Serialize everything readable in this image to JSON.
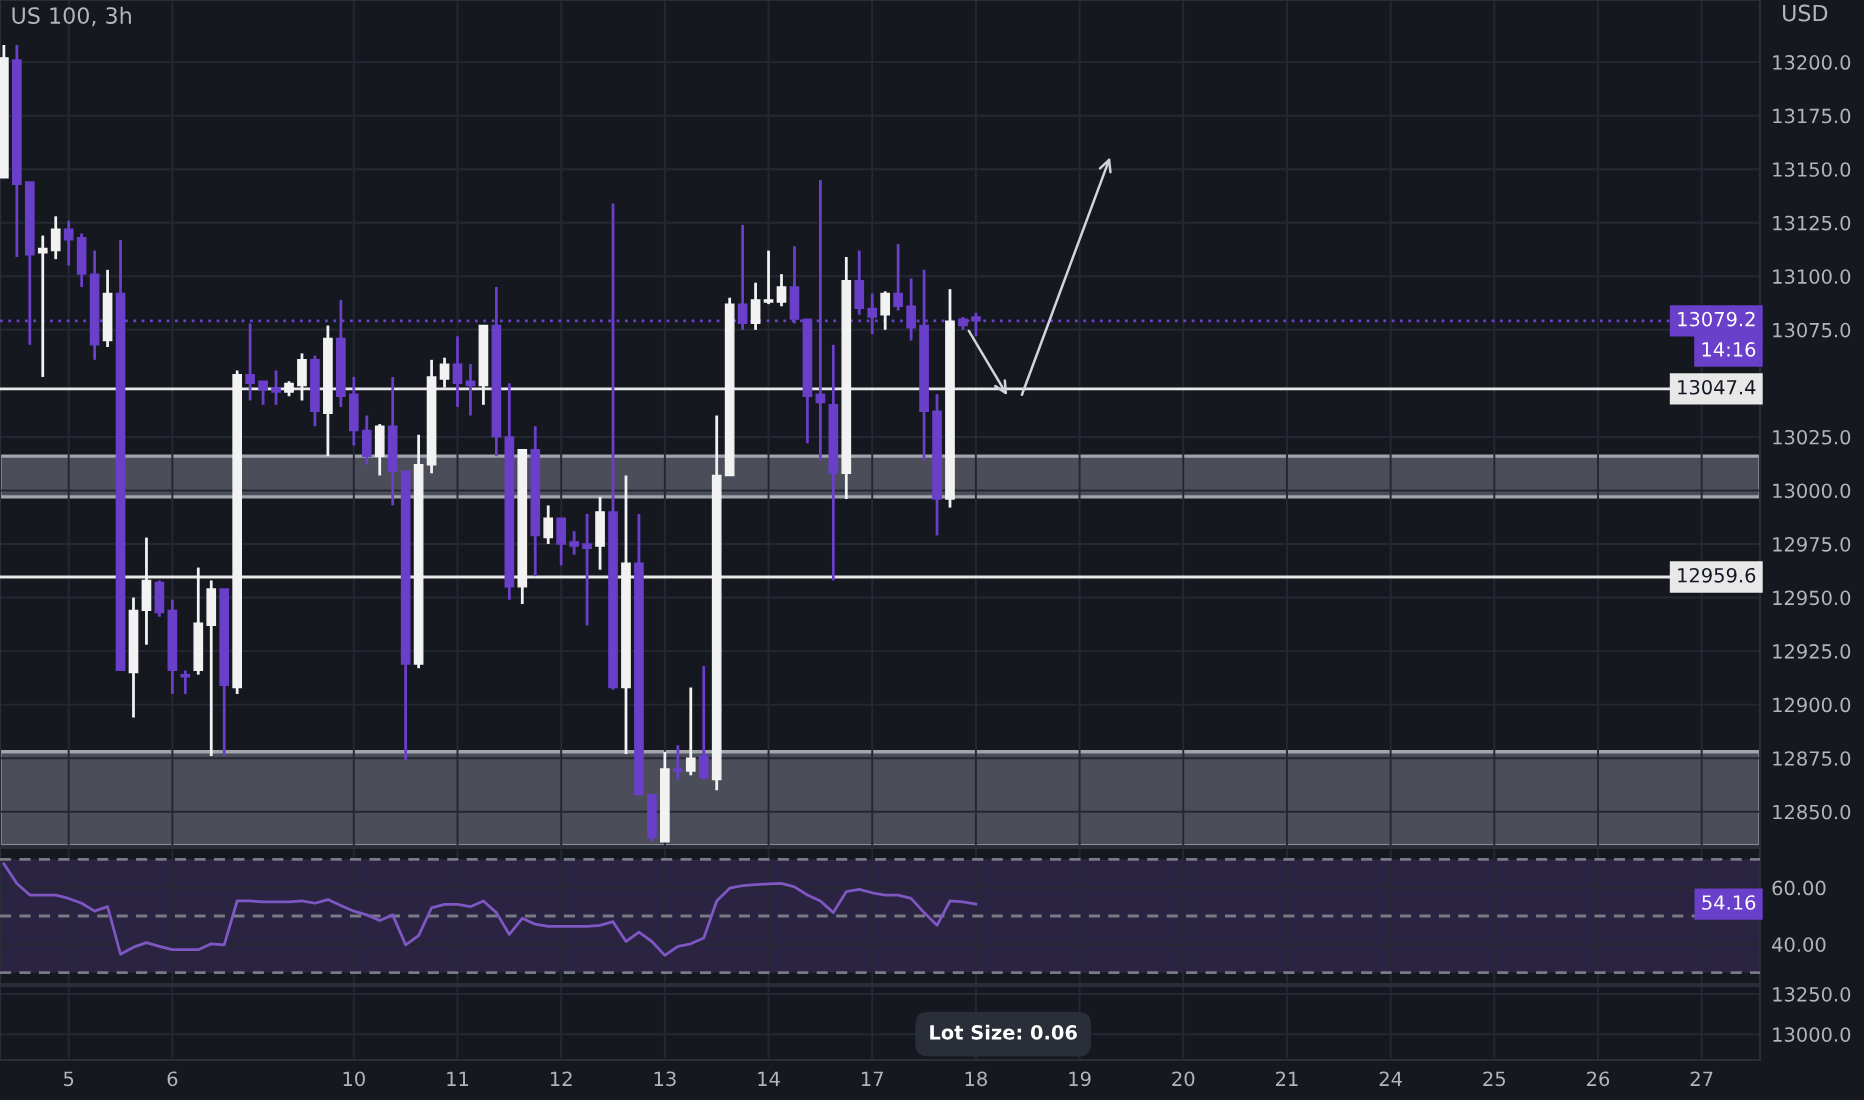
{
  "chart_data": [
    {
      "type": "candlestick",
      "title": "US 100, 3h",
      "ylabel": "USD",
      "categories": [
        null,
        null,
        null,
        null,
        null,
        "5",
        null,
        null,
        null,
        null,
        null,
        null,
        null,
        "6",
        null,
        null,
        null,
        null,
        null,
        null,
        null,
        null,
        null,
        null,
        null,
        null,
        null,
        "10",
        null,
        null,
        null,
        null,
        null,
        null,
        null,
        "11",
        null,
        null,
        null,
        null,
        null,
        null,
        null,
        "12",
        null,
        null,
        null,
        null,
        null,
        null,
        null,
        "13",
        null,
        null,
        null,
        null,
        null,
        null,
        null,
        "14",
        null,
        null,
        null,
        null,
        null,
        null,
        null,
        "17",
        null,
        null,
        null,
        null,
        null,
        null,
        null,
        "18",
        null,
        null,
        null,
        null,
        null,
        null,
        null,
        "19",
        null,
        null,
        null,
        null,
        null,
        null,
        null,
        "20",
        null,
        null,
        null,
        null,
        null,
        null,
        null,
        "21",
        null,
        null,
        null,
        null,
        null,
        null,
        null,
        "24",
        null,
        null,
        null,
        null,
        null,
        null,
        null,
        "25",
        null,
        null,
        null,
        null,
        null,
        null,
        null,
        "26",
        null,
        null,
        null,
        null,
        null,
        null,
        null,
        "27",
        null,
        null,
        null,
        null
      ],
      "ohlc": [
        [
          13146,
          13208,
          13146,
          13202
        ],
        [
          13201,
          13208,
          13109,
          13143
        ],
        [
          13144,
          13144,
          13068,
          13110
        ],
        [
          13111,
          13119,
          13053,
          13113
        ],
        [
          13112,
          13128,
          13108,
          13122
        ],
        [
          13122,
          13126,
          13105,
          13117
        ],
        [
          13118,
          13120,
          13095,
          13101
        ],
        [
          13101,
          13112,
          13061,
          13068
        ],
        [
          13070,
          13103,
          13067,
          13092
        ],
        [
          13092,
          13117,
          12916,
          12916
        ],
        [
          12915,
          12950,
          12894,
          12944
        ],
        [
          12944,
          12978,
          12928,
          12958
        ],
        [
          12957,
          12958,
          12941,
          12943
        ],
        [
          12944,
          12949,
          12905,
          12916
        ],
        [
          12914,
          12916,
          12905,
          12913
        ],
        [
          12916,
          12964,
          12914,
          12938
        ],
        [
          12937,
          12958,
          12876,
          12954
        ],
        [
          12954,
          12954,
          12876,
          12909
        ],
        [
          12908,
          13056,
          12905,
          13054
        ],
        [
          13054,
          13078,
          13042,
          13050
        ],
        [
          13051,
          13051,
          13040,
          13047
        ],
        [
          13048,
          13056,
          13040,
          13046
        ],
        [
          13046,
          13051,
          13044,
          13050
        ],
        [
          13049,
          13064,
          13042,
          13061
        ],
        [
          13061,
          13063,
          13030,
          13037
        ],
        [
          13036,
          13077,
          13016,
          13071
        ],
        [
          13071,
          13089,
          13039,
          13044
        ],
        [
          13045,
          13053,
          13021,
          13028
        ],
        [
          13028,
          13035,
          13012,
          13016
        ],
        [
          13016,
          13031,
          13007,
          13030
        ],
        [
          13030,
          13053,
          12993,
          13009
        ],
        [
          13009,
          13009,
          12874,
          12919
        ],
        [
          12919,
          13026,
          12917,
          13012
        ],
        [
          13012,
          13061,
          13008,
          13053
        ],
        [
          13052,
          13062,
          13048,
          13059
        ],
        [
          13059,
          13072,
          13039,
          13050
        ],
        [
          13051,
          13059,
          13035,
          13049
        ],
        [
          13049,
          13077,
          13040,
          13077
        ],
        [
          13077,
          13095,
          13016,
          13025
        ],
        [
          13025,
          13050,
          12949,
          12955
        ],
        [
          12955,
          13019,
          12947,
          13019
        ],
        [
          13019,
          13030,
          12960,
          12979
        ],
        [
          12978,
          12993,
          12975,
          12987
        ],
        [
          12987,
          12987,
          12965,
          12975
        ],
        [
          12976,
          12981,
          12970,
          12974
        ],
        [
          12975,
          12989,
          12937,
          12973
        ],
        [
          12974,
          12997,
          12963,
          12990
        ],
        [
          12990,
          13134,
          12907,
          12908
        ],
        [
          12908,
          13007,
          12877,
          12966
        ],
        [
          12966,
          12989,
          12858,
          12858
        ],
        [
          12858,
          12858,
          12836,
          12838
        ],
        [
          12836,
          12878,
          12836,
          12870
        ],
        [
          12870,
          12881,
          12865,
          12869
        ],
        [
          12869,
          12908,
          12867,
          12875
        ],
        [
          12876,
          12918,
          12865,
          12866
        ],
        [
          12865,
          13035,
          12860,
          13007
        ],
        [
          13007,
          13090,
          13007,
          13087
        ],
        [
          13087,
          13124,
          13075,
          13078
        ],
        [
          13078,
          13097,
          13075,
          13089
        ],
        [
          13088,
          13112,
          13087,
          13089
        ],
        [
          13088,
          13101,
          13086,
          13095
        ],
        [
          13095,
          13114,
          13078,
          13080
        ],
        [
          13080,
          13080,
          13022,
          13044
        ],
        [
          13045,
          13145,
          13014,
          13041
        ],
        [
          13040,
          13068,
          12958,
          13008
        ],
        [
          13008,
          13109,
          12996,
          13098
        ],
        [
          13098,
          13112,
          13082,
          13085
        ],
        [
          13085,
          13092,
          13073,
          13081
        ],
        [
          13082,
          13093,
          13075,
          13092
        ],
        [
          13092,
          13115,
          13084,
          13086
        ],
        [
          13086,
          13099,
          13070,
          13076
        ],
        [
          13077,
          13103,
          13014,
          13037
        ],
        [
          13037,
          13045,
          12979,
          12996
        ],
        [
          12996,
          13094,
          12992,
          13079
        ],
        [
          13080,
          13081,
          13075,
          13077
        ],
        [
          13081,
          13083,
          13072,
          13079.2
        ],
        null,
        null,
        null,
        null,
        null,
        null,
        null,
        null,
        null,
        null,
        null,
        null,
        null,
        null,
        null,
        null,
        null,
        null,
        null,
        null,
        null,
        null,
        null,
        null,
        null,
        null,
        null,
        null,
        null,
        null,
        null,
        null,
        null,
        null,
        null,
        null,
        null,
        null,
        null,
        null,
        null,
        null,
        null,
        null,
        null,
        null,
        null,
        null,
        null,
        null,
        null,
        null,
        null,
        null,
        null,
        null,
        null,
        null,
        null,
        null
      ],
      "colors": [
        "#f2f2f2",
        "#6a3fc9",
        "#6a3fc9",
        "#f2f2f2",
        "#f2f2f2",
        "#6a3fc9",
        "#6a3fc9",
        "#6a3fc9",
        "#f2f2f2",
        "#6a3fc9",
        "#f2f2f2",
        "#f2f2f2",
        "#6a3fc9",
        "#6a3fc9",
        "#6a3fc9",
        "#f2f2f2",
        "#f2f2f2",
        "#6a3fc9",
        "#f2f2f2",
        "#6a3fc9",
        "#6a3fc9",
        "#6a3fc9",
        "#f2f2f2",
        "#f2f2f2",
        "#6a3fc9",
        "#f2f2f2",
        "#6a3fc9",
        "#6a3fc9",
        "#6a3fc9",
        "#f2f2f2",
        "#6a3fc9",
        "#6a3fc9",
        "#f2f2f2",
        "#f2f2f2",
        "#f2f2f2",
        "#6a3fc9",
        "#6a3fc9",
        "#f2f2f2",
        "#6a3fc9",
        "#6a3fc9",
        "#f2f2f2",
        "#6a3fc9",
        "#f2f2f2",
        "#6a3fc9",
        "#6a3fc9",
        "#6a3fc9",
        "#f2f2f2",
        "#6a3fc9",
        "#f2f2f2",
        "#6a3fc9",
        "#6a3fc9",
        "#f2f2f2",
        "#6a3fc9",
        "#f2f2f2",
        "#6a3fc9",
        "#f2f2f2",
        "#f2f2f2",
        "#6a3fc9",
        "#f2f2f2",
        "#f2f2f2",
        "#f2f2f2",
        "#6a3fc9",
        "#6a3fc9",
        "#6a3fc9",
        "#6a3fc9",
        "#f2f2f2",
        "#6a3fc9",
        "#6a3fc9",
        "#f2f2f2",
        "#6a3fc9",
        "#6a3fc9",
        "#6a3fc9",
        "#6a3fc9",
        "#f2f2f2",
        "#6a3fc9",
        "#6a3fc9",
        null,
        null,
        null,
        null,
        null,
        null,
        null,
        null,
        null,
        null,
        null,
        null,
        null,
        null,
        null,
        null,
        null,
        null,
        null,
        null,
        null,
        null,
        null,
        null,
        null,
        null,
        null,
        null,
        null,
        null,
        null,
        null,
        null,
        null,
        null,
        null,
        null,
        null,
        null,
        null,
        null,
        null,
        null,
        null,
        null,
        null,
        null,
        null,
        null,
        null,
        null,
        null,
        null,
        null,
        null,
        null,
        null,
        null,
        null,
        null
      ],
      "ylim": [
        12834,
        13229
      ],
      "yticks": [
        {
          "value": 12850,
          "label": "12850.0"
        },
        {
          "value": 12875,
          "label": "12875.0"
        },
        {
          "value": 12900,
          "label": "12900.0"
        },
        {
          "value": 12925,
          "label": "12925.0"
        },
        {
          "value": 12950,
          "label": "12950.0"
        },
        {
          "value": 12975,
          "label": "12975.0"
        },
        {
          "value": 13000,
          "label": "13000.0"
        },
        {
          "value": 13025,
          "label": "13025.0"
        },
        {
          "value": 13075,
          "label": "13075.0"
        },
        {
          "value": 13100,
          "label": "13100.0"
        },
        {
          "value": 13125,
          "label": "13125.0"
        },
        {
          "value": 13150,
          "label": "13150.0"
        },
        {
          "value": 13175,
          "label": "13175.0"
        },
        {
          "value": 13200,
          "label": "13200.0"
        }
      ],
      "ref_lines": [
        {
          "axis": "y",
          "value": 13047.4,
          "label": "13047.4",
          "color": "#e8e8e8",
          "line_style": "solid"
        },
        {
          "axis": "y",
          "value": 12959.6,
          "label": "12959.6",
          "color": "#e8e8e8",
          "line_style": "solid"
        },
        {
          "axis": "y",
          "value": 13079.2,
          "label": "13079.2",
          "color": "#6a3fc9",
          "line_style": "dotted"
        }
      ],
      "bands": [
        {
          "axis": "y",
          "from": 12997,
          "to": 13016,
          "color": "#5d606b"
        },
        {
          "axis": "y",
          "from": 12834,
          "to": 12878,
          "color": "#5d606b"
        }
      ],
      "annotations": [
        "14:16"
      ],
      "grid": true,
      "tick_labels": "y"
    },
    {
      "type": "line",
      "categories": [
        null,
        null,
        null,
        null,
        null,
        "5",
        null,
        null,
        null,
        null,
        null,
        null,
        null,
        "6",
        null,
        null,
        null,
        null,
        null,
        null,
        null,
        null,
        null,
        null,
        null,
        null,
        null,
        "10",
        null,
        null,
        null,
        null,
        null,
        null,
        null,
        "11",
        null,
        null,
        null,
        null,
        null,
        null,
        null,
        "12",
        null,
        null,
        null,
        null,
        null,
        null,
        null,
        "13",
        null,
        null,
        null,
        null,
        null,
        null,
        null,
        "14",
        null,
        null,
        null,
        null,
        null,
        null,
        null,
        "17",
        null,
        null,
        null,
        null,
        null,
        null,
        null,
        "18",
        null,
        null,
        null,
        null,
        null,
        null,
        null,
        "19",
        null,
        null,
        null,
        null,
        null,
        null,
        null,
        "20",
        null,
        null,
        null,
        null,
        null,
        null,
        null,
        "21",
        null,
        null,
        null,
        null,
        null,
        null,
        null,
        "24",
        null,
        null,
        null,
        null,
        null,
        null,
        null,
        "25",
        null,
        null,
        null,
        null,
        null,
        null,
        null,
        "26",
        null,
        null,
        null,
        null,
        null,
        null,
        null,
        "27",
        null,
        null,
        null,
        null
      ],
      "series": [
        {
          "color": "#7e57c2",
          "values": [
            68.4,
            61.5,
            57.4,
            57.4,
            57.4,
            56.2,
            54.5,
            51.7,
            53.3,
            36.5,
            39.0,
            40.6,
            39.3,
            38.1,
            38.1,
            38.1,
            40.2,
            39.8,
            55.3,
            55.3,
            55.0,
            55.0,
            55.0,
            55.3,
            54.5,
            55.8,
            53.7,
            51.7,
            50.4,
            48.4,
            50.4,
            39.8,
            43.1,
            52.9,
            54.1,
            54.1,
            53.3,
            55.3,
            51.2,
            43.5,
            49.2,
            47.1,
            46.3,
            46.3,
            46.3,
            46.3,
            46.7,
            48.0,
            41.0,
            44.3,
            41.0,
            36.1,
            39.3,
            40.2,
            42.2,
            55.3,
            59.8,
            60.7,
            61.1,
            61.3,
            61.5,
            60.3,
            57.4,
            55.3,
            51.2,
            58.6,
            59.4,
            58.2,
            57.4,
            57.4,
            56.2,
            51.2,
            46.7,
            55.3,
            55.0,
            54.16,
            null,
            null,
            null,
            null,
            null,
            null,
            null,
            null,
            null,
            null,
            null,
            null,
            null,
            null,
            null,
            null,
            null,
            null,
            null,
            null,
            null,
            null,
            null,
            null,
            null,
            null,
            null,
            null,
            null,
            null,
            null,
            null,
            null,
            null,
            null,
            null,
            null,
            null,
            null,
            null,
            null,
            null,
            null,
            null,
            null,
            null,
            null,
            null,
            null,
            null,
            null,
            null,
            null,
            null,
            null,
            null,
            null,
            null,
            null,
            null
          ]
        }
      ],
      "ylim": [
        26,
        74
      ],
      "yticks": [
        {
          "value": 40,
          "label": "40.00"
        },
        {
          "value": 60,
          "label": "60.00"
        }
      ],
      "ref_lines": [
        {
          "axis": "y",
          "value": 70,
          "color": "#787b86",
          "line_style": "dashed"
        },
        {
          "axis": "y",
          "value": 50,
          "color": "#787b86",
          "line_style": "dashed"
        },
        {
          "axis": "y",
          "value": 30,
          "color": "#787b86",
          "line_style": "dashed"
        }
      ],
      "bands": [
        {
          "axis": "y",
          "from": 30,
          "to": 70,
          "color": "#2a2342"
        }
      ],
      "annotations": [
        {
          "text": "54.16",
          "y": 54.16
        }
      ],
      "grid": true,
      "tick_labels": "y"
    },
    {
      "type": "line",
      "categories": [
        null,
        null,
        null,
        null,
        null,
        "5",
        null,
        null,
        null,
        null,
        null,
        null,
        null,
        "6",
        null,
        null,
        null,
        null,
        null,
        null,
        null,
        null,
        null,
        null,
        null,
        null,
        null,
        "10",
        null,
        null,
        null,
        null,
        null,
        null,
        null,
        "11",
        null,
        null,
        null,
        null,
        null,
        null,
        null,
        "12",
        null,
        null,
        null,
        null,
        null,
        null,
        null,
        "13",
        null,
        null,
        null,
        null,
        null,
        null,
        null,
        "14",
        null,
        null,
        null,
        null,
        null,
        null,
        null,
        "17",
        null,
        null,
        null,
        null,
        null,
        null,
        null,
        "18",
        null,
        null,
        null,
        null,
        null,
        null,
        null,
        "19",
        null,
        null,
        null,
        null,
        null,
        null,
        null,
        "20",
        null,
        null,
        null,
        null,
        null,
        null,
        null,
        "21",
        null,
        null,
        null,
        null,
        null,
        null,
        null,
        "24",
        null,
        null,
        null,
        null,
        null,
        null,
        null,
        "25",
        null,
        null,
        null,
        null,
        null,
        null,
        null,
        "26",
        null,
        null,
        null,
        null,
        null,
        null,
        null,
        "27",
        null,
        null,
        null,
        null
      ],
      "ylim": [
        12840,
        13300
      ],
      "yticks": [
        {
          "value": 13000,
          "label": "13000.0"
        },
        {
          "value": 13250,
          "label": "13250.0"
        }
      ],
      "annotations": [
        "Lot Size: 0.06"
      ],
      "grid": true
    }
  ]
}
